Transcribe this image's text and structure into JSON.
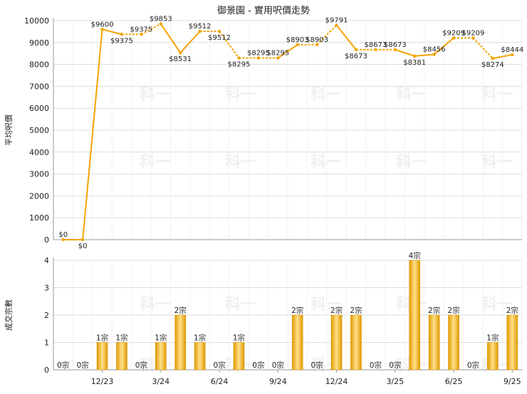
{
  "chart_data": [
    {
      "type": "line",
      "title": "御景園 - 實用呎價走勢",
      "ylabel": "平均呎價",
      "ylim": [
        0,
        10000
      ],
      "yticks": [
        0,
        1000,
        2000,
        3000,
        4000,
        5000,
        6000,
        7000,
        8000,
        9000,
        10000
      ],
      "grid": true,
      "values": [
        0,
        0,
        9600,
        9375,
        9375,
        9853,
        8531,
        9512,
        9512,
        8295,
        8295,
        8295,
        8903,
        8903,
        9791,
        8673,
        8673,
        8673,
        8381,
        8456,
        9209,
        9209,
        8274,
        8444
      ],
      "labels": [
        "$0",
        "$0",
        "$9600",
        "$9375",
        "$9375",
        "$9853",
        "$8531",
        "$9512",
        "$9512",
        "$8295",
        "$8295",
        "$8295",
        "$8903",
        "$8903",
        "$9791",
        "$8673",
        "$8673",
        "$8673",
        "$8381",
        "$8456",
        "$9209",
        "$9209",
        "$8274",
        "$8444"
      ],
      "interpolated": [
        false,
        false,
        false,
        false,
        true,
        false,
        false,
        false,
        true,
        false,
        true,
        false,
        false,
        true,
        false,
        false,
        true,
        false,
        false,
        false,
        false,
        true,
        false,
        false
      ]
    },
    {
      "type": "bar",
      "ylabel": "成交宗數",
      "ylim": [
        0,
        4
      ],
      "yticks": [
        0,
        1,
        2,
        3,
        4
      ],
      "grid": true,
      "values": [
        0,
        0,
        1,
        1,
        0,
        1,
        2,
        1,
        0,
        1,
        0,
        0,
        2,
        0,
        2,
        2,
        0,
        0,
        4,
        2,
        2,
        0,
        1,
        2
      ],
      "labels": [
        "0宗",
        "0宗",
        "1宗",
        "1宗",
        "0宗",
        "1宗",
        "2宗",
        "1宗",
        "0宗",
        "1宗",
        "0宗",
        "0宗",
        "2宗",
        "0宗",
        "2宗",
        "2宗",
        "0宗",
        "0宗",
        "4宗",
        "2宗",
        "2宗",
        "0宗",
        "1宗",
        "2宗"
      ],
      "xtick_labels": [
        {
          "index": 2,
          "label": "12/23"
        },
        {
          "index": 5,
          "label": "3/24"
        },
        {
          "index": 8,
          "label": "6/24"
        },
        {
          "index": 11,
          "label": "9/24"
        },
        {
          "index": 14,
          "label": "12/24"
        },
        {
          "index": 17,
          "label": "3/25"
        },
        {
          "index": 20,
          "label": "6/25"
        },
        {
          "index": 23,
          "label": "9/25"
        }
      ]
    }
  ],
  "colors": {
    "line": "#f5a300",
    "bar_light": "#ffe08a",
    "bar_dark": "#e09a00",
    "grid": "#dcdcdc",
    "axis": "#999999",
    "text": "#222222",
    "watermark": "#f0f0f0"
  },
  "watermark_text": "科一"
}
